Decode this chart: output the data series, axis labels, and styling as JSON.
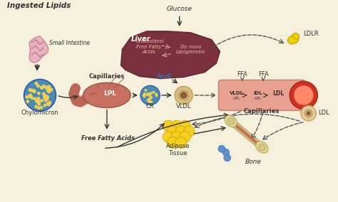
{
  "background_color": "#f5f0dc",
  "labels": {
    "ingested_lipids": "Ingested Lipids",
    "small_intestine": "Small Intestine",
    "chylomicron": "Chylomicron",
    "capillaries1": "Capillaries",
    "cr": "CR",
    "lpl1": "LPL",
    "liver": "Liver",
    "glucose": "Glucose",
    "cholesterol": "Cholesterol",
    "free_fatty_acids_liver": "Free Fatty\nAcids",
    "de_novo": "De novo\nLipogenesis",
    "apoE": "ApoE",
    "vldl1": "VLDL",
    "ldlr": "LDLR",
    "ffa1": "FFA",
    "ffa2": "FFA",
    "capillaries2": "Capillaries",
    "vldl2": "VLDL",
    "lpl2": "LPL",
    "idl": "IDL",
    "lpl3": "LPL",
    "ldl1": "LDL",
    "ldl2": "LDL",
    "free_fatty_acids_bottom": "Free Fatty Acids",
    "adipose_tissue": "Adipose\nTissue",
    "bone": "Bone"
  },
  "colors": {
    "liver": "#7b3040",
    "capillary1_body": "#c87060",
    "capillary1_outline": "#a05040",
    "capillary2_body": "#e8a090",
    "capillary2_outline": "#c08070",
    "capillary2_end": "#cc3322",
    "chylomicron_blue": "#4a8ab5",
    "chylomicron_yellow": "#f0d050",
    "adipose_yellow": "#f5d020",
    "adipose_outline": "#c0a000",
    "ldlr_yellow": "#f0d000",
    "bone_main": "#d4c888",
    "bone_marrow": "#c87050",
    "bone_outline": "#b0a060",
    "bone_end": "#e8d890",
    "blue_cell": "#6090d0",
    "text_dark": "#333333",
    "liver_text": "#ffffff",
    "arrow_solid": "#333333",
    "arrow_dashed": "#555555",
    "liver_label_text": "#f0c0b0"
  }
}
